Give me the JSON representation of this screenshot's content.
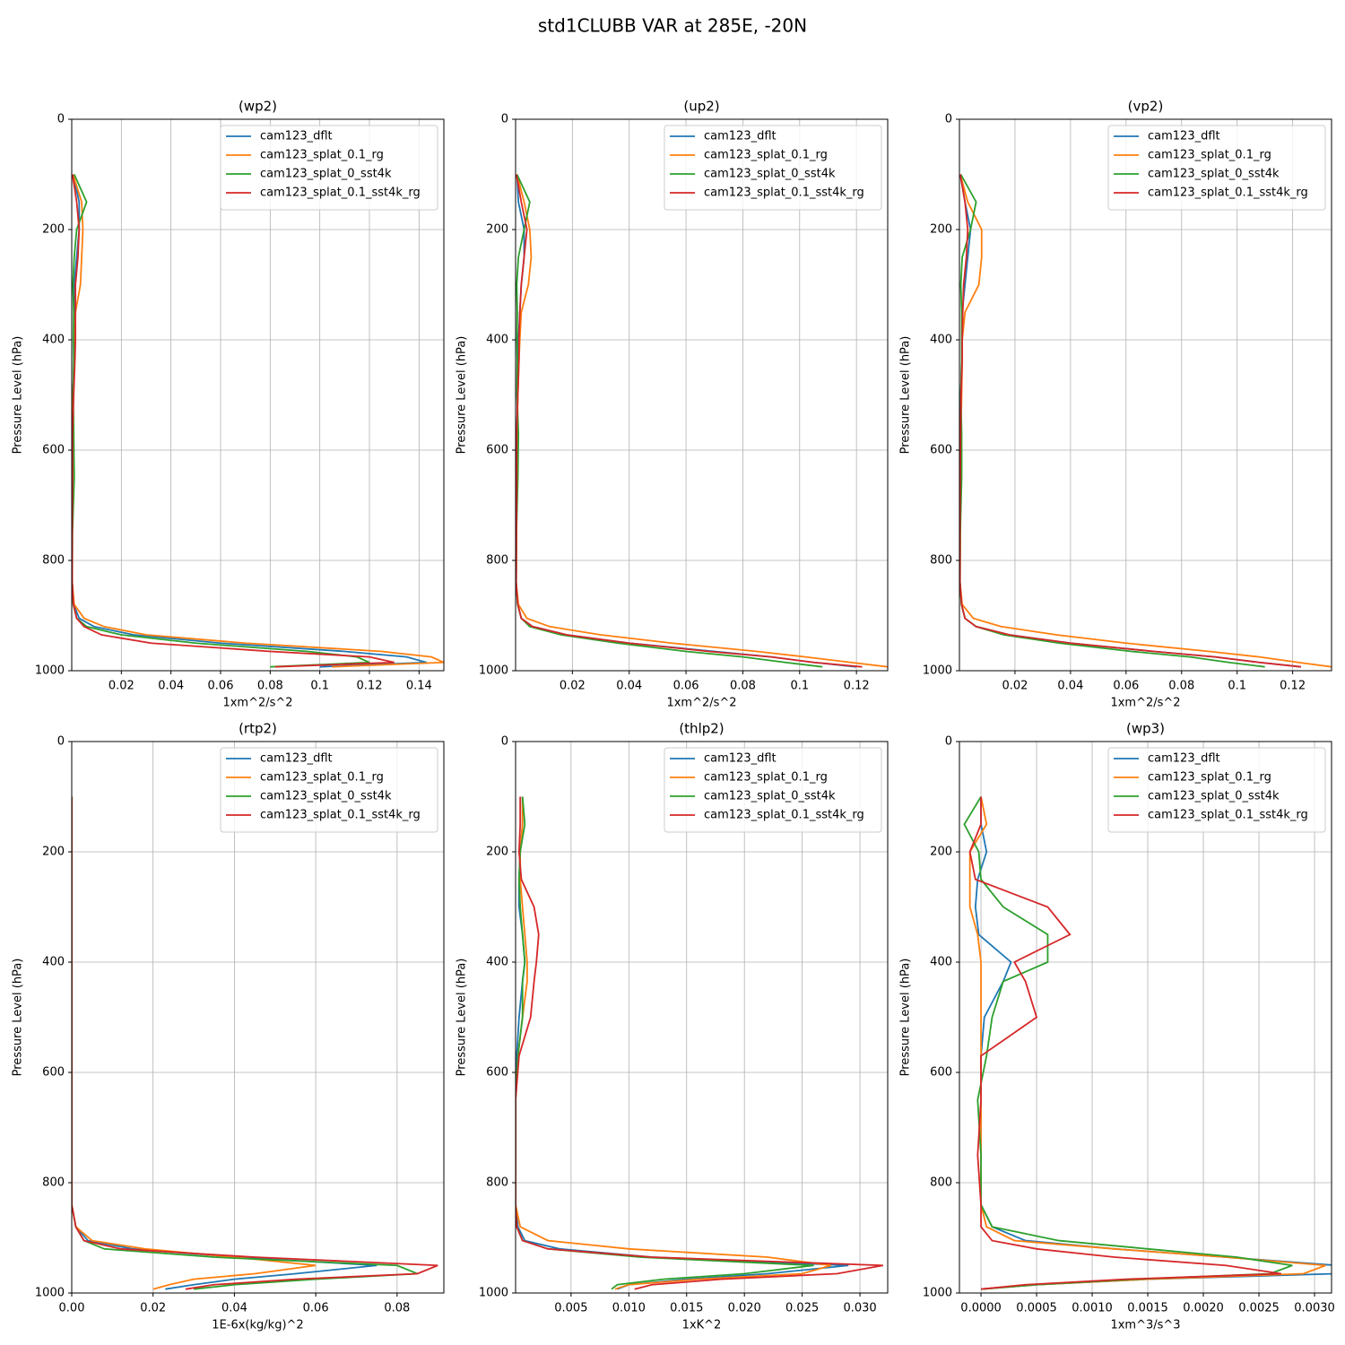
{
  "title": "std1CLUBB VAR at 285E, -20N",
  "chart_data": [
    {
      "type": "line",
      "title": "(wp2)",
      "x_label": "1xm^2/s^2",
      "y_label": "Pressure Level (hPa)",
      "legend": "upper right",
      "grid": true,
      "y_inverted": true,
      "xlim": [
        0,
        0.15
      ],
      "xticks": [
        0.02,
        0.04,
        0.06,
        0.08,
        0.1,
        0.12,
        0.14
      ],
      "ylim": [
        0,
        1000
      ],
      "yticks": [
        0,
        200,
        400,
        600,
        800,
        1000
      ],
      "y": [
        100,
        150,
        200,
        250,
        300,
        350,
        400,
        435,
        500,
        570,
        650,
        750,
        840,
        880,
        905,
        920,
        935,
        950,
        965,
        975,
        985,
        993
      ],
      "series": [
        {
          "name": "cam123_dflt",
          "color": "#1f77b4",
          "values": [
            0.0005,
            0.003,
            0.003,
            0.002,
            0.001,
            0.001,
            0.001,
            0.001,
            0.0005,
            0.0003,
            0.0003,
            0.0002,
            0.0002,
            0.0008,
            0.003,
            0.009,
            0.025,
            0.06,
            0.11,
            0.135,
            0.143,
            0.1
          ]
        },
        {
          "name": "cam123_splat_0.1_rg",
          "color": "#ff7f0e",
          "values": [
            0.0005,
            0.004,
            0.0045,
            0.004,
            0.0035,
            0.0015,
            0.001,
            0.001,
            0.0005,
            0.0003,
            0.0003,
            0.0002,
            0.0002,
            0.001,
            0.005,
            0.013,
            0.03,
            0.07,
            0.125,
            0.145,
            0.15,
            0.105
          ]
        },
        {
          "name": "cam123_splat_0_sst4k",
          "color": "#2ca02c",
          "values": [
            0.001,
            0.006,
            0.002,
            0.001,
            0.0005,
            0.0008,
            0.0007,
            0.0008,
            0.0006,
            0.0008,
            0.001,
            0.0003,
            0.0002,
            0.0006,
            0.002,
            0.006,
            0.02,
            0.05,
            0.095,
            0.115,
            0.12,
            0.08
          ]
        },
        {
          "name": "cam123_splat_0.1_sst4k_rg",
          "color": "#d62728",
          "values": [
            0.0003,
            0.002,
            0.003,
            0.0025,
            0.0015,
            0.0015,
            0.0015,
            0.0013,
            0.0008,
            0.0003,
            0.0003,
            0.0002,
            0.0002,
            0.0007,
            0.002,
            0.005,
            0.012,
            0.032,
            0.08,
            0.12,
            0.13,
            0.082
          ]
        }
      ]
    },
    {
      "type": "line",
      "title": "(up2)",
      "x_label": "1xm^2/s^2",
      "y_label": "Pressure Level (hPa)",
      "legend": "upper right",
      "grid": true,
      "y_inverted": true,
      "xlim": [
        0,
        0.131
      ],
      "xticks": [
        0.02,
        0.04,
        0.06,
        0.08,
        0.1,
        0.12
      ],
      "ylim": [
        0,
        1000
      ],
      "yticks": [
        0,
        200,
        400,
        600,
        800,
        1000
      ],
      "y": [
        100,
        150,
        200,
        250,
        300,
        350,
        400,
        435,
        500,
        570,
        650,
        750,
        840,
        880,
        905,
        920,
        935,
        950,
        965,
        975,
        985,
        993
      ],
      "series": [
        {
          "name": "cam123_dflt",
          "color": "#1f77b4",
          "values": [
            0.0005,
            0.001,
            0.003,
            0.003,
            0.002,
            0.0015,
            0.001,
            0.001,
            0.0007,
            0.0005,
            0.0004,
            0.0003,
            0.0002,
            0.0008,
            0.002,
            0.006,
            0.018,
            0.04,
            0.07,
            0.09,
            0.105,
            0.12
          ]
        },
        {
          "name": "cam123_splat_0.1_rg",
          "color": "#ff7f0e",
          "values": [
            0.0005,
            0.003,
            0.005,
            0.0055,
            0.0045,
            0.002,
            0.0015,
            0.0012,
            0.0008,
            0.0005,
            0.0004,
            0.0003,
            0.0002,
            0.001,
            0.004,
            0.012,
            0.03,
            0.055,
            0.085,
            0.102,
            0.118,
            0.131
          ]
        },
        {
          "name": "cam123_splat_0_sst4k",
          "color": "#2ca02c",
          "values": [
            0.0005,
            0.005,
            0.003,
            0.001,
            0.0004,
            0.0006,
            0.0005,
            0.0006,
            0.0005,
            0.001,
            0.0008,
            0.0003,
            0.0002,
            0.0007,
            0.002,
            0.005,
            0.016,
            0.036,
            0.06,
            0.08,
            0.095,
            0.108
          ]
        },
        {
          "name": "cam123_splat_0.1_sst4k_rg",
          "color": "#d62728",
          "values": [
            0.0003,
            0.002,
            0.004,
            0.003,
            0.002,
            0.0015,
            0.0012,
            0.0012,
            0.0008,
            0.0004,
            0.0004,
            0.0003,
            0.0002,
            0.0008,
            0.002,
            0.006,
            0.018,
            0.04,
            0.068,
            0.09,
            0.105,
            0.122
          ]
        }
      ]
    },
    {
      "type": "line",
      "title": "(vp2)",
      "x_label": "1xm^2/s^2",
      "y_label": "Pressure Level (hPa)",
      "legend": "upper right",
      "grid": true,
      "y_inverted": true,
      "xlim": [
        0,
        0.134
      ],
      "xticks": [
        0.02,
        0.04,
        0.06,
        0.08,
        0.1,
        0.12
      ],
      "ylim": [
        0,
        1000
      ],
      "yticks": [
        0,
        200,
        400,
        600,
        800,
        1000
      ],
      "y": [
        100,
        150,
        200,
        250,
        300,
        350,
        400,
        435,
        500,
        570,
        650,
        750,
        840,
        880,
        905,
        920,
        935,
        950,
        965,
        975,
        985,
        993
      ],
      "series": [
        {
          "name": "cam123_dflt",
          "color": "#1f77b4",
          "values": [
            0.0003,
            0.002,
            0.004,
            0.003,
            0.002,
            0.001,
            0.0008,
            0.0008,
            0.0005,
            0.0004,
            0.0003,
            0.0002,
            0.0002,
            0.0008,
            0.002,
            0.006,
            0.018,
            0.04,
            0.07,
            0.092,
            0.108,
            0.123
          ]
        },
        {
          "name": "cam123_splat_0.1_rg",
          "color": "#ff7f0e",
          "values": [
            0.0003,
            0.003,
            0.008,
            0.008,
            0.007,
            0.002,
            0.001,
            0.001,
            0.0008,
            0.0005,
            0.0004,
            0.0003,
            0.0002,
            0.001,
            0.005,
            0.015,
            0.035,
            0.06,
            0.09,
            0.108,
            0.122,
            0.134
          ]
        },
        {
          "name": "cam123_splat_0_sst4k",
          "color": "#2ca02c",
          "values": [
            0.0005,
            0.006,
            0.004,
            0.001,
            0.0005,
            0.0008,
            0.0008,
            0.0008,
            0.0005,
            0.0008,
            0.0008,
            0.0003,
            0.0002,
            0.0007,
            0.002,
            0.006,
            0.016,
            0.036,
            0.062,
            0.083,
            0.097,
            0.11
          ]
        },
        {
          "name": "cam123_splat_0.1_sst4k_rg",
          "color": "#d62728",
          "values": [
            0.0003,
            0.002,
            0.003,
            0.0025,
            0.0015,
            0.0012,
            0.001,
            0.001,
            0.0006,
            0.0004,
            0.0003,
            0.0002,
            0.0002,
            0.0008,
            0.002,
            0.006,
            0.018,
            0.04,
            0.07,
            0.092,
            0.108,
            0.123
          ]
        }
      ]
    },
    {
      "type": "line",
      "title": "(rtp2)",
      "x_label": "1E-6x(kg/kg)^2",
      "y_label": "Pressure Level (hPa)",
      "legend": "upper right",
      "grid": true,
      "y_inverted": true,
      "xlim": [
        0,
        0.0915
      ],
      "xticks": [
        {
          "value": 0,
          "label": "0.00"
        },
        0.02,
        0.04,
        0.06,
        0.08
      ],
      "ylim": [
        0,
        1000
      ],
      "yticks": [
        0,
        200,
        400,
        600,
        800,
        1000
      ],
      "y": [
        100,
        150,
        200,
        250,
        300,
        350,
        400,
        435,
        500,
        570,
        650,
        750,
        840,
        880,
        905,
        920,
        935,
        950,
        965,
        975,
        985,
        993
      ],
      "series": [
        {
          "name": "cam123_dflt",
          "color": "#1f77b4",
          "values": [
            0,
            0,
            0,
            0,
            0,
            0,
            0,
            0,
            0,
            0,
            0,
            0,
            0,
            0.001,
            0.004,
            0.015,
            0.04,
            0.075,
            0.055,
            0.04,
            0.03,
            0.023
          ]
        },
        {
          "name": "cam123_splat_0.1_rg",
          "color": "#ff7f0e",
          "values": [
            0,
            0,
            0,
            0,
            0,
            0,
            0,
            0,
            0,
            0,
            0,
            0,
            0,
            0.001,
            0.005,
            0.018,
            0.04,
            0.06,
            0.045,
            0.03,
            0.024,
            0.02
          ]
        },
        {
          "name": "cam123_splat_0_sst4k",
          "color": "#2ca02c",
          "values": [
            0,
            0,
            0,
            0,
            0,
            0,
            0,
            0,
            0,
            0,
            0,
            0,
            0,
            0.001,
            0.003,
            0.008,
            0.035,
            0.08,
            0.085,
            0.06,
            0.04,
            0.03
          ]
        },
        {
          "name": "cam123_splat_0.1_sst4k_rg",
          "color": "#d62728",
          "values": [
            0,
            0,
            0,
            0,
            0,
            0,
            0,
            0,
            0,
            0,
            0,
            0,
            0,
            0.001,
            0.003,
            0.012,
            0.045,
            0.09,
            0.085,
            0.055,
            0.035,
            0.028
          ]
        }
      ]
    },
    {
      "type": "line",
      "title": "(thlp2)",
      "x_label": "1xK^2",
      "y_label": "Pressure Level (hPa)",
      "legend": "upper right",
      "grid": true,
      "y_inverted": true,
      "xlim": [
        0.0002,
        0.0324
      ],
      "xticks": [
        0.005,
        {
          "value": 0.01,
          "label": "0.010"
        },
        0.015,
        {
          "value": 0.02,
          "label": "0.020"
        },
        0.025,
        {
          "value": 0.03,
          "label": "0.030"
        }
      ],
      "ylim": [
        0,
        1000
      ],
      "yticks": [
        0,
        200,
        400,
        600,
        800,
        1000
      ],
      "y": [
        100,
        150,
        200,
        250,
        300,
        350,
        400,
        435,
        500,
        570,
        650,
        750,
        840,
        880,
        905,
        920,
        935,
        950,
        965,
        975,
        985,
        993
      ],
      "series": [
        {
          "name": "cam123_dflt",
          "color": "#1f77b4",
          "values": [
            0.0008,
            0.0008,
            0.0006,
            0.0005,
            0.0005,
            0.0008,
            0.001,
            0.0008,
            0.0005,
            0.0003,
            0.0002,
            0.0002,
            0.0002,
            0.0004,
            0.001,
            0.004,
            0.012,
            0.029,
            0.022,
            0.015,
            0.01,
            0.009
          ]
        },
        {
          "name": "cam123_splat_0.1_rg",
          "color": "#ff7f0e",
          "values": [
            0.0008,
            0.0008,
            0.0006,
            0.0006,
            0.0008,
            0.001,
            0.0012,
            0.0012,
            0.0008,
            0.0004,
            0.0002,
            0.0002,
            0.0002,
            0.0006,
            0.003,
            0.01,
            0.022,
            0.0275,
            0.025,
            0.016,
            0.01,
            0.0088
          ]
        },
        {
          "name": "cam123_splat_0_sst4k",
          "color": "#2ca02c",
          "values": [
            0.0008,
            0.001,
            0.0006,
            0.0005,
            0.0006,
            0.0008,
            0.001,
            0.0008,
            0.0008,
            0.0004,
            0.0002,
            0.0002,
            0.0002,
            0.0003,
            0.0008,
            0.003,
            0.011,
            0.026,
            0.02,
            0.013,
            0.009,
            0.0085
          ]
        },
        {
          "name": "cam123_splat_0.1_sst4k_rg",
          "color": "#d62728",
          "values": [
            0.0006,
            0.0006,
            0.0005,
            0.0007,
            0.0018,
            0.0022,
            0.002,
            0.0018,
            0.0015,
            0.0005,
            0.0002,
            0.0002,
            0.0002,
            0.0003,
            0.0008,
            0.003,
            0.012,
            0.032,
            0.028,
            0.018,
            0.012,
            0.0105
          ]
        }
      ]
    },
    {
      "type": "line",
      "title": "(wp3)",
      "x_label": "1xm^3/s^3",
      "y_label": "Pressure Level (hPa)",
      "legend": "upper right",
      "grid": true,
      "y_inverted": true,
      "xlim": [
        -0.000194,
        0.003153
      ],
      "xticks": [
        {
          "value": 0,
          "label": "0.0000"
        },
        0.0005,
        {
          "value": 0.001,
          "label": "0.0010"
        },
        0.0015,
        {
          "value": 0.002,
          "label": "0.0020"
        },
        0.0025,
        {
          "value": 0.003,
          "label": "0.0030"
        }
      ],
      "ylim": [
        0,
        1000
      ],
      "yticks": [
        0,
        200,
        400,
        600,
        800,
        1000
      ],
      "y": [
        100,
        150,
        200,
        250,
        300,
        350,
        400,
        435,
        500,
        570,
        650,
        750,
        840,
        880,
        905,
        920,
        935,
        950,
        965,
        975,
        985,
        993
      ],
      "series": [
        {
          "name": "cam123_dflt",
          "color": "#1f77b4",
          "values": [
            0,
            0,
            5e-05,
            -3e-05,
            -5e-05,
            -2e-05,
            0.00027,
            0.0002,
            3e-05,
            0,
            0,
            0,
            0,
            0.0001,
            0.0004,
            0.0012,
            0.0022,
            0.0032,
            0.0032,
            0.0015,
            0.0005,
            0
          ]
        },
        {
          "name": "cam123_splat_0.1_rg",
          "color": "#ff7f0e",
          "values": [
            0,
            5e-05,
            -0.0001,
            -0.0001,
            -0.0001,
            -3e-05,
            0,
            0,
            0,
            0,
            0,
            0,
            0,
            5e-05,
            0.0003,
            0.0012,
            0.0022,
            0.0031,
            0.0029,
            0.0015,
            0.0005,
            0
          ]
        },
        {
          "name": "cam123_splat_0_sst4k",
          "color": "#2ca02c",
          "values": [
            0,
            -0.00015,
            -2e-05,
            0,
            0.0002,
            0.0006,
            0.0006,
            0.0002,
            0.0001,
            5e-05,
            -3e-05,
            0,
            0,
            0.0001,
            0.0007,
            0.0015,
            0.0023,
            0.0028,
            0.0026,
            0.0014,
            0.0005,
            0
          ]
        },
        {
          "name": "cam123_splat_0.1_sst4k_rg",
          "color": "#d62728",
          "values": [
            0,
            0,
            -0.0001,
            -5e-05,
            0.0006,
            0.0008,
            0.0003,
            0.0004,
            0.0005,
            0,
            0,
            -3e-05,
            0,
            0,
            0.0001,
            0.0005,
            0.0012,
            0.0022,
            0.0027,
            0.0013,
            0.0004,
            0
          ]
        }
      ]
    }
  ]
}
